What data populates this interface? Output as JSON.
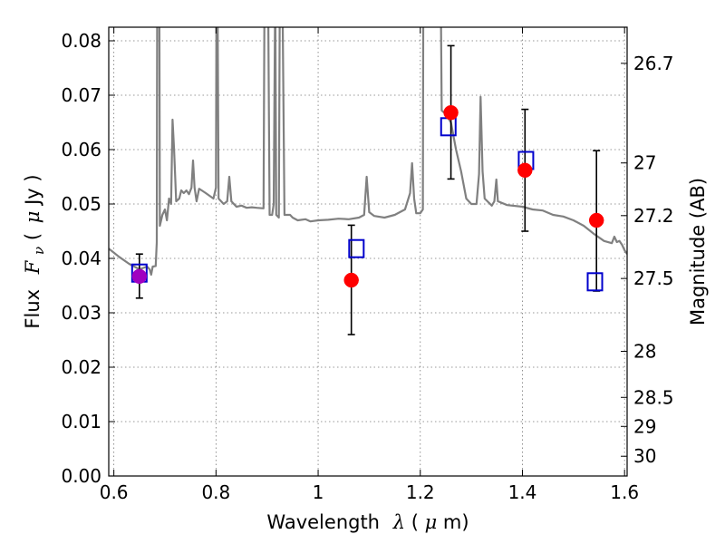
{
  "chart_data": {
    "type": "scatter",
    "title": "",
    "xlabel_text": "Wavelength",
    "xlabel_symbol": "λ",
    "xlabel_unit_open": " (",
    "xlabel_unit_mu": "μ",
    "xlabel_unit_rest": "m)",
    "ylabel_text": "Flux",
    "ylabel_symbol": "F",
    "ylabel_sub": "ν",
    "ylabel_unit_open": " (",
    "ylabel_unit_mu": "μ",
    "ylabel_unit_rest": "Jy )",
    "ylabel_right": "Magnitude (AB)",
    "xlim": [
      0.59,
      1.605
    ],
    "ylim": [
      0.0,
      0.0825
    ],
    "grid": true,
    "x_ticks": [
      {
        "value": 0.6,
        "label": "0.6"
      },
      {
        "value": 0.8,
        "label": "0.8"
      },
      {
        "value": 1.0,
        "label": "1"
      },
      {
        "value": 1.2,
        "label": "1.2"
      },
      {
        "value": 1.4,
        "label": "1.4"
      },
      {
        "value": 1.6,
        "label": "1.6"
      }
    ],
    "y_ticks": [
      {
        "value": 0.0,
        "label": "0.00"
      },
      {
        "value": 0.01,
        "label": "0.01"
      },
      {
        "value": 0.02,
        "label": "0.02"
      },
      {
        "value": 0.03,
        "label": "0.03"
      },
      {
        "value": 0.04,
        "label": "0.04"
      },
      {
        "value": 0.05,
        "label": "0.05"
      },
      {
        "value": 0.06,
        "label": "0.06"
      },
      {
        "value": 0.07,
        "label": "0.07"
      },
      {
        "value": 0.08,
        "label": "0.08"
      }
    ],
    "right_ticks": [
      {
        "mag": 26.7,
        "label": "26.7"
      },
      {
        "mag": 27.0,
        "label": "27"
      },
      {
        "mag": 27.2,
        "label": "27.2"
      },
      {
        "mag": 27.5,
        "label": "27.5"
      },
      {
        "mag": 28.0,
        "label": "28"
      },
      {
        "mag": 28.5,
        "label": "28.5"
      },
      {
        "mag": 29.0,
        "label": "29"
      },
      {
        "mag": 30.0,
        "label": "30"
      }
    ],
    "model_spectrum": {
      "color": "#808080",
      "points": [
        [
          0.59,
          0.0418
        ],
        [
          0.61,
          0.0403
        ],
        [
          0.63,
          0.039
        ],
        [
          0.65,
          0.038
        ],
        [
          0.665,
          0.0385
        ],
        [
          0.67,
          0.038
        ],
        [
          0.673,
          0.037
        ],
        [
          0.676,
          0.0385
        ],
        [
          0.682,
          0.0386
        ],
        [
          0.684,
          0.043
        ],
        [
          0.685,
          0.09
        ],
        [
          0.689,
          0.09
        ],
        [
          0.69,
          0.046
        ],
        [
          0.695,
          0.048
        ],
        [
          0.7,
          0.049
        ],
        [
          0.704,
          0.047
        ],
        [
          0.708,
          0.051
        ],
        [
          0.712,
          0.05
        ],
        [
          0.715,
          0.0655
        ],
        [
          0.718,
          0.06
        ],
        [
          0.722,
          0.0505
        ],
        [
          0.728,
          0.051
        ],
        [
          0.732,
          0.0525
        ],
        [
          0.737,
          0.052
        ],
        [
          0.742,
          0.0525
        ],
        [
          0.747,
          0.0518
        ],
        [
          0.752,
          0.053
        ],
        [
          0.755,
          0.058
        ],
        [
          0.758,
          0.053
        ],
        [
          0.762,
          0.0505
        ],
        [
          0.767,
          0.0528
        ],
        [
          0.772,
          0.0525
        ],
        [
          0.78,
          0.052
        ],
        [
          0.795,
          0.051
        ],
        [
          0.8,
          0.053
        ],
        [
          0.801,
          0.09
        ],
        [
          0.803,
          0.09
        ],
        [
          0.805,
          0.051
        ],
        [
          0.815,
          0.05
        ],
        [
          0.822,
          0.0505
        ],
        [
          0.826,
          0.055
        ],
        [
          0.83,
          0.0505
        ],
        [
          0.84,
          0.0495
        ],
        [
          0.85,
          0.0497
        ],
        [
          0.86,
          0.0493
        ],
        [
          0.87,
          0.0494
        ],
        [
          0.88,
          0.0493
        ],
        [
          0.893,
          0.0492
        ],
        [
          0.895,
          0.09
        ],
        [
          0.902,
          0.09
        ],
        [
          0.905,
          0.048
        ],
        [
          0.91,
          0.048
        ],
        [
          0.913,
          0.05
        ],
        [
          0.916,
          0.09
        ],
        [
          0.918,
          0.048
        ],
        [
          0.923,
          0.0475
        ],
        [
          0.925,
          0.09
        ],
        [
          0.93,
          0.09
        ],
        [
          0.934,
          0.048
        ],
        [
          0.945,
          0.048
        ],
        [
          0.95,
          0.0475
        ],
        [
          0.96,
          0.047
        ],
        [
          0.975,
          0.0472
        ],
        [
          0.985,
          0.0468
        ],
        [
          1.0,
          0.047
        ],
        [
          1.02,
          0.0471
        ],
        [
          1.04,
          0.0473
        ],
        [
          1.06,
          0.0472
        ],
        [
          1.08,
          0.0475
        ],
        [
          1.09,
          0.048
        ],
        [
          1.095,
          0.055
        ],
        [
          1.1,
          0.0485
        ],
        [
          1.11,
          0.0478
        ],
        [
          1.13,
          0.0475
        ],
        [
          1.15,
          0.048
        ],
        [
          1.17,
          0.049
        ],
        [
          1.18,
          0.052
        ],
        [
          1.184,
          0.0575
        ],
        [
          1.188,
          0.051
        ],
        [
          1.192,
          0.0483
        ],
        [
          1.2,
          0.0483
        ],
        [
          1.205,
          0.049
        ],
        [
          1.206,
          0.09
        ],
        [
          1.24,
          0.09
        ],
        [
          1.242,
          0.0672
        ],
        [
          1.25,
          0.0665
        ],
        [
          1.26,
          0.065
        ],
        [
          1.27,
          0.06
        ],
        [
          1.28,
          0.056
        ],
        [
          1.29,
          0.051
        ],
        [
          1.3,
          0.05
        ],
        [
          1.31,
          0.05
        ],
        [
          1.315,
          0.0555
        ],
        [
          1.318,
          0.0697
        ],
        [
          1.322,
          0.056
        ],
        [
          1.326,
          0.051
        ],
        [
          1.34,
          0.0497
        ],
        [
          1.345,
          0.0505
        ],
        [
          1.349,
          0.0545
        ],
        [
          1.352,
          0.0505
        ],
        [
          1.37,
          0.0498
        ],
        [
          1.4,
          0.0495
        ],
        [
          1.42,
          0.049
        ],
        [
          1.44,
          0.0488
        ],
        [
          1.46,
          0.048
        ],
        [
          1.48,
          0.0477
        ],
        [
          1.5,
          0.047
        ],
        [
          1.52,
          0.046
        ],
        [
          1.54,
          0.0445
        ],
        [
          1.56,
          0.0432
        ],
        [
          1.575,
          0.0428
        ],
        [
          1.58,
          0.044
        ],
        [
          1.585,
          0.043
        ],
        [
          1.59,
          0.0432
        ],
        [
          1.595,
          0.0425
        ],
        [
          1.6,
          0.0415
        ],
        [
          1.605,
          0.0408
        ]
      ]
    },
    "observed_points": {
      "marker": "filled-circle",
      "color": "#ff0000",
      "x": [
        0.65,
        1.065,
        1.26,
        1.405,
        1.545
      ],
      "y": [
        0.0367,
        0.036,
        0.0668,
        0.0562,
        0.047
      ],
      "yerr_low": [
        0.004,
        0.01,
        0.0122,
        0.0112,
        0.013
      ],
      "yerr_high": [
        0.0041,
        0.0101,
        0.0123,
        0.0112,
        0.0128
      ]
    },
    "model_points": {
      "marker": "open-square",
      "color": "#0000cc",
      "x": [
        0.65,
        1.075,
        1.255,
        1.407,
        1.542
      ],
      "y": [
        0.0373,
        0.0418,
        0.0642,
        0.058,
        0.0357
      ]
    },
    "first_point_color": "#a000c0",
    "grid_color": "#777777"
  }
}
